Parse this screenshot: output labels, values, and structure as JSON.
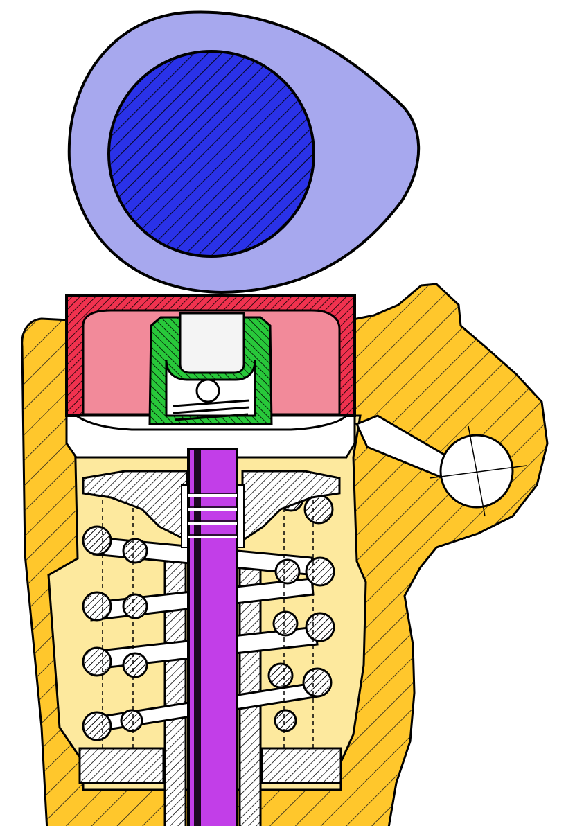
{
  "diagram": {
    "type": "cross-section",
    "labels": [],
    "parts": [
      {
        "id": "camshaft",
        "icon": "camshaft-cross-section",
        "color": "#2a32e8"
      },
      {
        "id": "cam-lobe",
        "icon": "cam-lobe",
        "color": "#a7a8ee"
      },
      {
        "id": "bucket-tappet",
        "icon": "bucket-tappet",
        "color": "#f0324f"
      },
      {
        "id": "tappet-chamber",
        "icon": "tappet-chamber",
        "color": "#f28a9a"
      },
      {
        "id": "hydraulic-lash-adjuster",
        "icon": "lash-adjuster",
        "color": "#28c83a"
      },
      {
        "id": "check-ball",
        "icon": "check-ball",
        "color": "#ffffff"
      },
      {
        "id": "cylinder-head",
        "icon": "cylinder-head",
        "color": "#ffc72c"
      },
      {
        "id": "spring-pocket",
        "icon": "spring-pocket",
        "color": "#fde99e"
      },
      {
        "id": "oil-passage",
        "icon": "oil-passage",
        "color": "#ffffff"
      },
      {
        "id": "valve-stem",
        "icon": "valve-stem",
        "color": "#c23ee8"
      },
      {
        "id": "valve-guide",
        "icon": "valve-guide",
        "color": "#ffffff"
      },
      {
        "id": "spring-retainer",
        "icon": "spring-retainer",
        "color": "#ffffff"
      },
      {
        "id": "valve-keepers",
        "icon": "valve-keepers",
        "color": "#ffffff"
      },
      {
        "id": "valve-springs",
        "icon": "coil-spring",
        "color": "#ffffff"
      },
      {
        "id": "spring-seat",
        "icon": "spring-seat",
        "color": "#ffffff"
      }
    ]
  }
}
